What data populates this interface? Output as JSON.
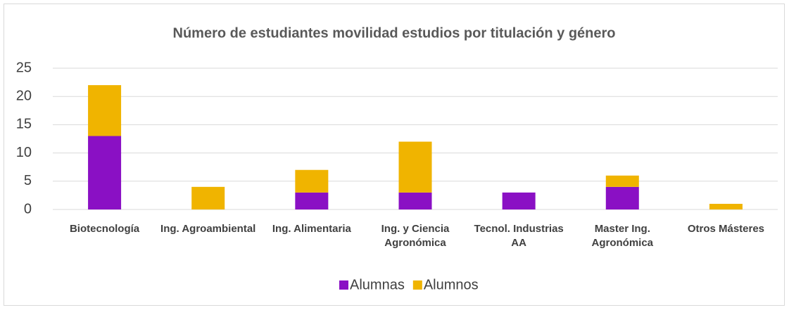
{
  "chart_data": {
    "type": "stacked_bar",
    "title": "Número de estudiantes movilidad estudios por titulación y género",
    "categories": [
      "Biotecnología",
      "Ing. Agroambiental",
      "Ing. Alimentaria",
      "Ing. y Ciencia Agronómica",
      "Tecnol. Industrias AA",
      "Master Ing. Agronómica",
      "Otros Másteres"
    ],
    "series": [
      {
        "name": "Alumnas",
        "color": "#8a10c4",
        "values": [
          13,
          0,
          3,
          3,
          3,
          4,
          0
        ]
      },
      {
        "name": "Alumnos",
        "color": "#f0b400",
        "values": [
          9,
          4,
          4,
          9,
          0,
          2,
          1
        ]
      }
    ],
    "ylim": [
      0,
      25
    ],
    "yticks": [
      0,
      5,
      10,
      15,
      20,
      25
    ],
    "grid": true,
    "legend": "bottom"
  }
}
